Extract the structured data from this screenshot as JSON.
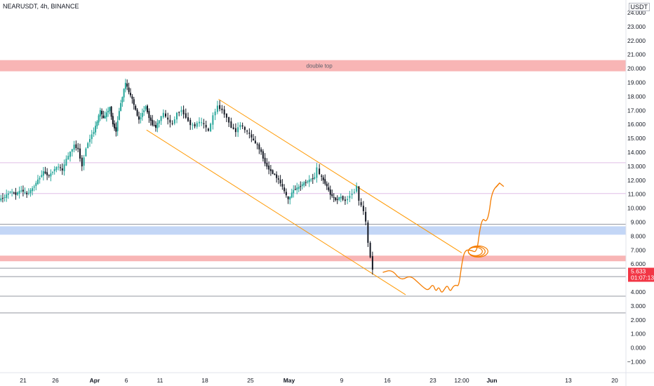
{
  "header": {
    "symbol_line": "NEARUSDT, 4h, BINANCE",
    "currency": "USDT"
  },
  "colors": {
    "up": "#26a69a",
    "down": "#131722",
    "wick_up": "#26a69a",
    "resistance_band": "#f7a8a8",
    "support_band": "#b8cff5",
    "channel": "#ff9800",
    "projection": "#f57c00",
    "last_price_bg": "#f23645",
    "magenta_line": "#e1bee7"
  },
  "chart_data": {
    "type": "candlestick",
    "symbol": "NEARUSDT",
    "timeframe": "4h",
    "exchange": "BINANCE",
    "ylim": [
      -1.0,
      24.0
    ],
    "y_ticks": [
      "24.000",
      "23.000",
      "22.000",
      "21.000",
      "20.000",
      "19.000",
      "18.000",
      "17.000",
      "16.000",
      "15.000",
      "14.000",
      "13.000",
      "12.000",
      "11.000",
      "10.000",
      "9.000",
      "8.000",
      "7.000",
      "6.000",
      "5.000",
      "4.000",
      "3.000",
      "2.000",
      "1.000",
      "0.000",
      "−1.000"
    ],
    "y_tick_values": [
      24,
      23,
      22,
      21,
      20,
      19,
      18,
      17,
      16,
      15,
      14,
      13,
      12,
      11,
      10,
      9,
      8,
      7,
      6,
      5,
      4,
      3,
      2,
      1,
      0,
      -1
    ],
    "x_ticks": [
      "21",
      "26",
      "Apr",
      "6",
      "11",
      "18",
      "25",
      "May",
      "9",
      "16",
      "23",
      "12:00",
      "Jun",
      "13",
      "20"
    ],
    "x_tick_values": [
      0,
      1,
      2,
      3,
      4,
      5,
      6,
      7,
      8,
      9,
      10,
      11,
      12,
      13,
      14
    ],
    "last_price": "5.633",
    "last_price_value": 5.633,
    "countdown": "01:07:13",
    "price_path": [
      [
        0.0,
        10.6
      ],
      [
        0.1,
        10.8
      ],
      [
        0.2,
        11.2
      ],
      [
        0.3,
        11.0
      ],
      [
        0.4,
        11.3
      ],
      [
        0.5,
        11.0
      ],
      [
        0.6,
        11.4
      ],
      [
        0.7,
        12.0
      ],
      [
        0.8,
        12.6
      ],
      [
        0.9,
        12.3
      ],
      [
        1.0,
        12.8
      ],
      [
        1.1,
        13.0
      ],
      [
        1.2,
        12.7
      ],
      [
        1.3,
        13.5
      ],
      [
        1.4,
        14.0
      ],
      [
        1.5,
        14.5
      ],
      [
        1.6,
        14.2
      ],
      [
        1.7,
        13.0
      ],
      [
        1.8,
        14.3
      ],
      [
        1.9,
        15.0
      ],
      [
        2.0,
        15.5
      ],
      [
        2.1,
        16.2
      ],
      [
        2.2,
        17.0
      ],
      [
        2.3,
        16.4
      ],
      [
        2.4,
        16.8
      ],
      [
        2.5,
        17.2
      ],
      [
        2.6,
        16.0
      ],
      [
        2.7,
        15.5
      ],
      [
        2.8,
        17.0
      ],
      [
        2.9,
        18.0
      ],
      [
        3.0,
        19.0
      ],
      [
        3.1,
        18.3
      ],
      [
        3.2,
        17.8
      ],
      [
        3.3,
        17.0
      ],
      [
        3.4,
        16.3
      ],
      [
        3.5,
        16.8
      ],
      [
        3.6,
        17.3
      ],
      [
        3.7,
        16.5
      ],
      [
        3.8,
        16.0
      ],
      [
        3.9,
        15.8
      ],
      [
        4.0,
        16.3
      ],
      [
        4.1,
        16.8
      ],
      [
        4.2,
        16.3
      ],
      [
        4.3,
        16.0
      ],
      [
        4.4,
        16.8
      ],
      [
        4.5,
        17.0
      ],
      [
        4.6,
        16.5
      ],
      [
        4.7,
        16.0
      ],
      [
        4.8,
        15.9
      ],
      [
        4.9,
        16.2
      ],
      [
        5.0,
        16.0
      ],
      [
        5.1,
        15.5
      ],
      [
        5.2,
        16.6
      ],
      [
        5.3,
        17.3
      ],
      [
        5.4,
        17.0
      ],
      [
        5.5,
        16.5
      ],
      [
        5.6,
        15.8
      ],
      [
        5.7,
        15.5
      ],
      [
        5.8,
        16.0
      ],
      [
        5.9,
        15.6
      ],
      [
        6.0,
        15.3
      ],
      [
        6.1,
        14.8
      ],
      [
        6.2,
        14.5
      ],
      [
        6.3,
        14.0
      ],
      [
        6.4,
        13.2
      ],
      [
        6.5,
        12.8
      ],
      [
        6.6,
        12.5
      ],
      [
        6.7,
        12.2
      ],
      [
        6.8,
        11.8
      ],
      [
        6.9,
        11.2
      ],
      [
        7.0,
        10.6
      ],
      [
        7.1,
        11.3
      ],
      [
        7.2,
        11.5
      ],
      [
        7.3,
        11.8
      ],
      [
        7.4,
        12.0
      ],
      [
        7.5,
        12.2
      ],
      [
        7.55,
        12.9
      ],
      [
        7.6,
        12.4
      ],
      [
        7.7,
        11.8
      ],
      [
        7.8,
        11.0
      ],
      [
        7.9,
        10.6
      ],
      [
        8.0,
        10.8
      ],
      [
        8.1,
        10.5
      ],
      [
        8.2,
        10.9
      ],
      [
        8.3,
        11.2
      ],
      [
        8.35,
        11.6
      ],
      [
        8.4,
        10.5
      ],
      [
        8.5,
        9.8
      ],
      [
        8.55,
        9.0
      ],
      [
        8.6,
        7.5
      ],
      [
        8.65,
        6.5
      ],
      [
        8.7,
        5.633
      ]
    ],
    "horizontal_bands": [
      {
        "label": "double top",
        "from": 19.8,
        "to": 20.6,
        "color": "resistance"
      },
      {
        "label": "",
        "from": 8.1,
        "to": 8.7,
        "color": "support"
      },
      {
        "label": "",
        "from": 6.2,
        "to": 6.6,
        "color": "resistance"
      }
    ],
    "horizontal_lines": [
      13.25,
      11.05,
      8.85,
      5.7,
      5.1,
      3.7,
      2.5
    ],
    "channel_upper": [
      [
        5.3,
        17.8
      ],
      [
        11.0,
        6.8
      ]
    ],
    "channel_lower": [
      [
        3.6,
        15.6
      ],
      [
        9.4,
        3.8
      ]
    ],
    "projection_path": [
      [
        8.9,
        5.4
      ],
      [
        9.1,
        5.6
      ],
      [
        9.3,
        4.8
      ],
      [
        9.5,
        5.2
      ],
      [
        9.7,
        4.6
      ],
      [
        9.8,
        4.3
      ],
      [
        9.9,
        4.1
      ],
      [
        10.0,
        4.6
      ],
      [
        10.1,
        4.0
      ],
      [
        10.2,
        4.4
      ],
      [
        10.3,
        3.9
      ],
      [
        10.4,
        4.2
      ],
      [
        10.5,
        4.5
      ],
      [
        10.6,
        4.0
      ],
      [
        10.7,
        4.4
      ],
      [
        10.8,
        4.5
      ],
      [
        10.9,
        4.4
      ],
      [
        11.0,
        6.0
      ],
      [
        11.1,
        7.0
      ],
      [
        11.3,
        7.0
      ],
      [
        11.5,
        6.8
      ],
      [
        11.6,
        8.5
      ],
      [
        11.7,
        9.3
      ],
      [
        11.8,
        9.0
      ],
      [
        11.9,
        9.5
      ],
      [
        12.0,
        11.2
      ],
      [
        12.1,
        11.8
      ]
    ],
    "loop_center": [
      11.45,
      6.9
    ]
  }
}
